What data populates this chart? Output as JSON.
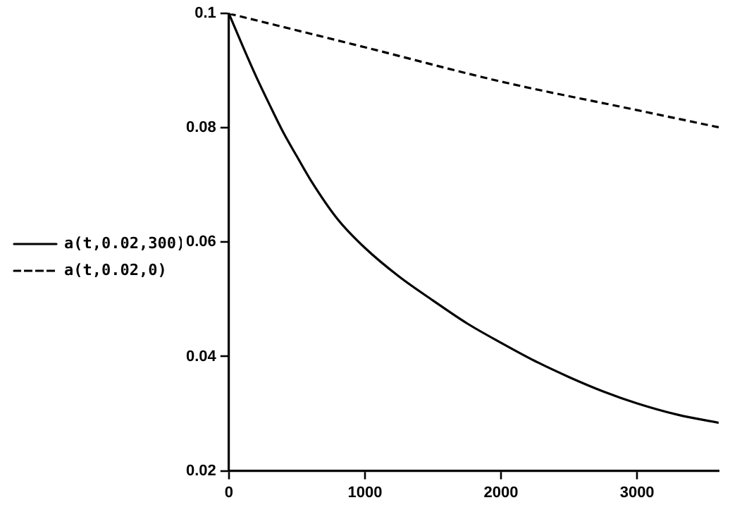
{
  "chart_data": {
    "type": "line",
    "series": [
      {
        "name": "a(t,0.02,300)",
        "color": "#000000",
        "line_style": "solid",
        "x": [
          0,
          100,
          200,
          300,
          400,
          500,
          600,
          800,
          1000,
          1250,
          1500,
          1750,
          2000,
          2250,
          2500,
          2750,
          3000,
          3300,
          3600
        ],
        "values": [
          0.1,
          0.0944,
          0.089,
          0.084,
          0.0792,
          0.075,
          0.0709,
          0.064,
          0.059,
          0.054,
          0.0498,
          0.0458,
          0.0424,
          0.0392,
          0.0364,
          0.0339,
          0.0318,
          0.0298,
          0.0284
        ]
      },
      {
        "name": "a(t,0.02,0)",
        "color": "#000000",
        "line_style": "dashed",
        "x": [
          0,
          1000,
          2000,
          3000,
          3600
        ],
        "values": [
          0.1,
          0.0941,
          0.0881,
          0.0831,
          0.0801
        ]
      }
    ],
    "xlim": [
      0,
      3600
    ],
    "xticks": [
      0,
      1000,
      2000,
      3000
    ],
    "ylim": [
      0.02,
      0.1
    ],
    "yticks": [
      0.02,
      0.04,
      0.06,
      0.08,
      0.1
    ],
    "grid": false,
    "legend": "left",
    "marker": "none"
  }
}
